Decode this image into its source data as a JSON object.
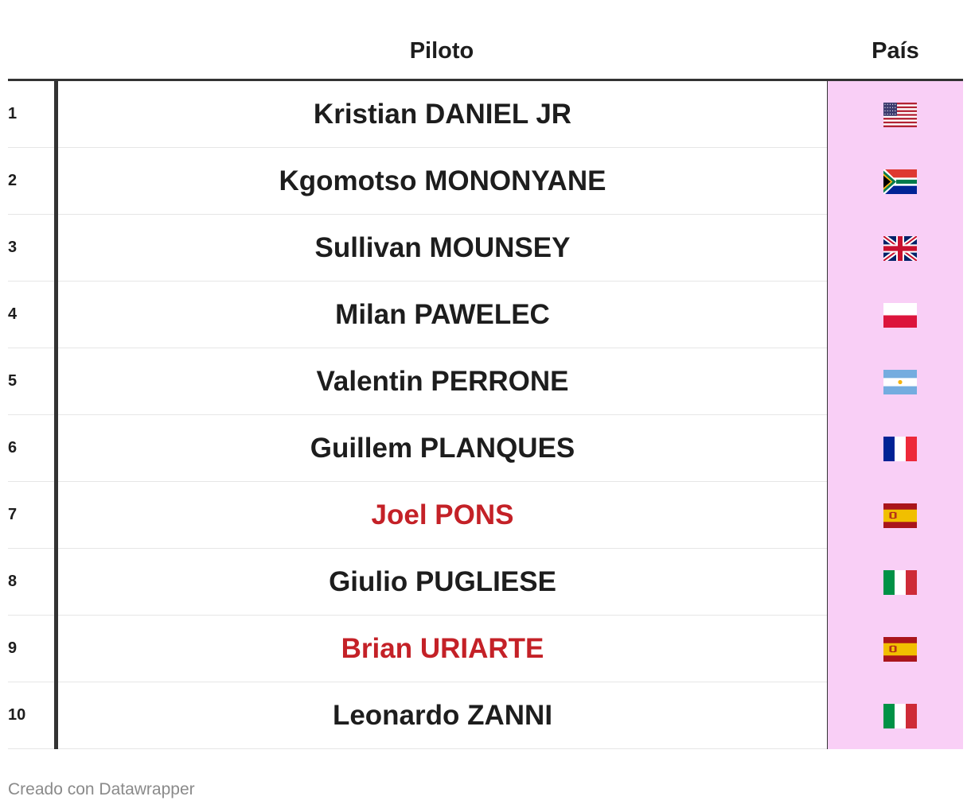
{
  "table": {
    "headers": {
      "piloto": "Piloto",
      "pais": "País"
    },
    "rows": [
      {
        "rank": "1",
        "name": "Kristian DANIEL JR",
        "country_flag": "usa-flag-icon",
        "highlight": false
      },
      {
        "rank": "2",
        "name": "Kgomotso MONONYANE",
        "country_flag": "south-africa-flag-icon",
        "highlight": false
      },
      {
        "rank": "3",
        "name": "Sullivan MOUNSEY",
        "country_flag": "uk-flag-icon",
        "highlight": false
      },
      {
        "rank": "4",
        "name": "Milan PAWELEC",
        "country_flag": "poland-flag-icon",
        "highlight": false
      },
      {
        "rank": "5",
        "name": "Valentin PERRONE",
        "country_flag": "argentina-flag-icon",
        "highlight": false
      },
      {
        "rank": "6",
        "name": "Guillem PLANQUES",
        "country_flag": "france-flag-icon",
        "highlight": false
      },
      {
        "rank": "7",
        "name": "Joel PONS",
        "country_flag": "spain-flag-icon",
        "highlight": true
      },
      {
        "rank": "8",
        "name": "Giulio PUGLIESE",
        "country_flag": "italy-flag-icon",
        "highlight": false
      },
      {
        "rank": "9",
        "name": "Brian URIARTE",
        "country_flag": "spain-flag-icon",
        "highlight": true
      },
      {
        "rank": "10",
        "name": "Leonardo ZANNI",
        "country_flag": "italy-flag-icon",
        "highlight": false
      }
    ]
  },
  "colors": {
    "highlight_text": "#c42127",
    "country_column_bg": "#f9cff6",
    "divider": "#333333"
  },
  "footer": {
    "credit": "Creado con Datawrapper"
  }
}
